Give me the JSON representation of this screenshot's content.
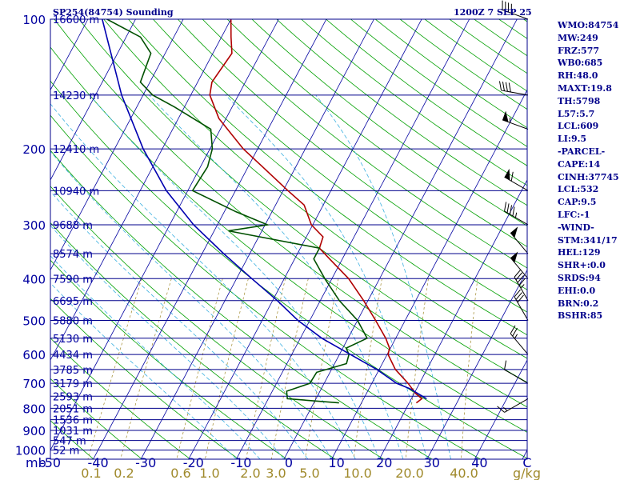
{
  "header": {
    "station": "SP254(84754) Sounding",
    "time": "1200Z  7 SEP 25"
  },
  "indices": [
    "WMO:84754",
    "MW:249",
    "FRZ:577",
    "WB0:685",
    "RH:48.0",
    "MAXT:19.8",
    "TH:5798",
    "L57:5.7",
    "LCL:609",
    "LI:9.5",
    "-PARCEL-",
    "CAPE:14",
    "CINH:37745",
    "LCL:532",
    "CAP:9.5",
    "LFC:-1",
    "-WIND-",
    "STM:341/17",
    "HEL:129",
    "SHR+:0.0",
    "SRDS:94",
    "EHI:0.0",
    "BRN:0.2",
    "BSHR:85"
  ],
  "colors": {
    "isobar": "#00008b",
    "isotherm": "#0000a0",
    "dry_adiabat": "#00a000",
    "moist_adiabat": "#3cb0e0",
    "mixing_ratio": "#a08a2c",
    "temperature": "#b00000",
    "dewpoint": "#005000",
    "parcel": "#0000b0",
    "wind": "#000000"
  },
  "chart_data": {
    "type": "line",
    "subtype": "skew-t log-p sounding",
    "pressure_axis": {
      "unit": "mb",
      "scale": "log",
      "range_mb": [
        100,
        1050
      ],
      "labels": [
        100,
        200,
        300,
        400,
        500,
        600,
        700,
        800,
        900,
        1000
      ]
    },
    "temperature_axis": {
      "unit": "C",
      "range": [
        -50,
        50
      ],
      "labels": [
        "-50",
        "-40",
        "-30",
        "-20",
        "-10",
        "0",
        "10",
        "20",
        "30",
        "40",
        "C"
      ]
    },
    "mixing_ratio_axis": {
      "unit": "g/kg",
      "labels": [
        "0.1",
        "0.2",
        "0.6",
        "1.0",
        "2.0",
        "3.0",
        "5.0",
        "10.0",
        "20.0",
        "40.0"
      ],
      "values": [
        0.1,
        0.2,
        0.6,
        1.0,
        2.0,
        3.0,
        5.0,
        10.0,
        20.0,
        40.0
      ]
    },
    "height_levels": [
      {
        "p": 100,
        "label": "16600 m"
      },
      {
        "p": 150,
        "label": "14230 m"
      },
      {
        "p": 200,
        "label": "12410 m"
      },
      {
        "p": 250,
        "label": "10940 m"
      },
      {
        "p": 300,
        "label": "9688 m"
      },
      {
        "p": 350,
        "label": "8574 m"
      },
      {
        "p": 400,
        "label": "7590 m"
      },
      {
        "p": 450,
        "label": "6695 m"
      },
      {
        "p": 500,
        "label": "5880 m"
      },
      {
        "p": 550,
        "label": "5130 m"
      },
      {
        "p": 600,
        "label": "4434 m"
      },
      {
        "p": 650,
        "label": "3785 m"
      },
      {
        "p": 700,
        "label": "3179 m"
      },
      {
        "p": 750,
        "label": "2593 m"
      },
      {
        "p": 800,
        "label": "2051 m"
      },
      {
        "p": 850,
        "label": "1536 m"
      },
      {
        "p": 900,
        "label": "1031 m"
      },
      {
        "p": 950,
        "label": "547 m"
      },
      {
        "p": 1000,
        "label": "52 m"
      }
    ],
    "series": [
      {
        "key": "temperature",
        "points": [
          [
            777,
            21.5
          ],
          [
            760,
            22.2
          ],
          [
            740,
            20.4
          ],
          [
            700,
            17.6
          ],
          [
            650,
            13.4
          ],
          [
            600,
            10.2
          ],
          [
            580,
            9.8
          ],
          [
            550,
            7.9
          ],
          [
            500,
            3.8
          ],
          [
            450,
            -0.9
          ],
          [
            400,
            -6.5
          ],
          [
            360,
            -12.7
          ],
          [
            340,
            -16.0
          ],
          [
            320,
            -16.5
          ],
          [
            300,
            -20.3
          ],
          [
            270,
            -24.0
          ],
          [
            250,
            -29.0
          ],
          [
            220,
            -37.0
          ],
          [
            200,
            -43.0
          ],
          [
            170,
            -51.5
          ],
          [
            150,
            -56.0
          ],
          [
            140,
            -57.0
          ],
          [
            120,
            -56.0
          ],
          [
            110,
            -58.0
          ],
          [
            100,
            -60.0
          ]
        ]
      },
      {
        "key": "dewpoint",
        "points": [
          [
            777,
            5.3
          ],
          [
            760,
            -6.0
          ],
          [
            730,
            -7.0
          ],
          [
            700,
            -3.0
          ],
          [
            660,
            -2.8
          ],
          [
            630,
            2.5
          ],
          [
            600,
            2.0
          ],
          [
            580,
            0.7
          ],
          [
            550,
            4.0
          ],
          [
            500,
            0.0
          ],
          [
            450,
            -6.0
          ],
          [
            400,
            -11.5
          ],
          [
            360,
            -16.0
          ],
          [
            340,
            -16.0
          ],
          [
            310,
            -37.0
          ],
          [
            300,
            -29.5
          ],
          [
            280,
            -37.5
          ],
          [
            250,
            -49.0
          ],
          [
            220,
            -48.5
          ],
          [
            200,
            -49.5
          ],
          [
            180,
            -52.0
          ],
          [
            160,
            -62.0
          ],
          [
            150,
            -68.0
          ],
          [
            140,
            -72.0
          ],
          [
            120,
            -73.0
          ],
          [
            110,
            -77.0
          ],
          [
            100,
            -86.0
          ]
        ]
      },
      {
        "key": "parcel",
        "points": [
          [
            760,
            23.2
          ],
          [
            720,
            18.5
          ],
          [
            700,
            15.2
          ],
          [
            650,
            9.5
          ],
          [
            600,
            2.3
          ],
          [
            550,
            -5.5
          ],
          [
            500,
            -12.5
          ],
          [
            450,
            -19.0
          ],
          [
            400,
            -26.8
          ],
          [
            350,
            -35.5
          ],
          [
            300,
            -45.0
          ],
          [
            250,
            -54.5
          ],
          [
            200,
            -64.0
          ],
          [
            150,
            -74.5
          ],
          [
            100,
            -87.0
          ]
        ]
      }
    ],
    "wind_profile": [
      {
        "p": 760,
        "dir": 240,
        "speed": 15
      },
      {
        "p": 700,
        "dir": 300,
        "speed": 10
      },
      {
        "p": 600,
        "dir": 320,
        "speed": 25
      },
      {
        "p": 500,
        "dir": 330,
        "speed": 30
      },
      {
        "p": 450,
        "dir": 330,
        "speed": 45
      },
      {
        "p": 400,
        "dir": 320,
        "speed": 50
      },
      {
        "p": 350,
        "dir": 320,
        "speed": 50
      },
      {
        "p": 300,
        "dir": 300,
        "speed": 45
      },
      {
        "p": 250,
        "dir": 300,
        "speed": 60
      },
      {
        "p": 180,
        "dir": 290,
        "speed": 55
      },
      {
        "p": 150,
        "dir": 280,
        "speed": 40
      },
      {
        "p": 100,
        "dir": 290,
        "speed": 40
      }
    ]
  }
}
